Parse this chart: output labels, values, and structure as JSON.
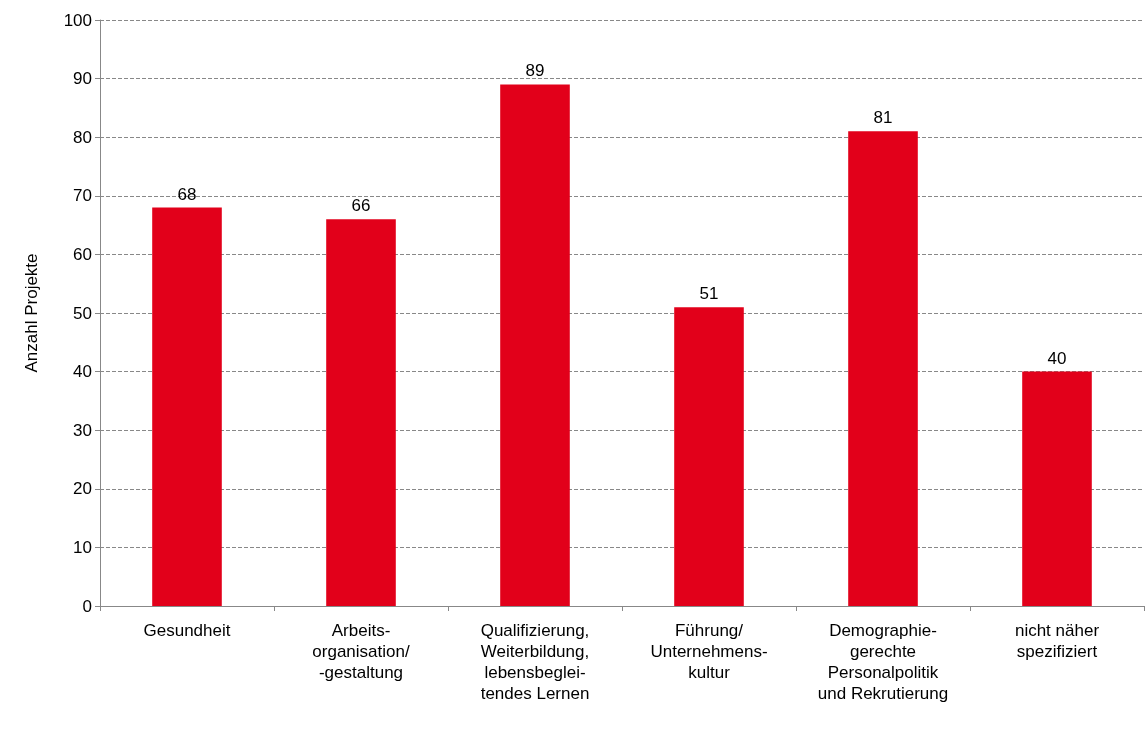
{
  "chart_data": {
    "type": "bar",
    "ylabel": "Anzahl Projekte",
    "categories": [
      "Gesundheit",
      "Arbeits-\norganisation/\n-gestaltung",
      "Qualifizierung,\nWeiterbildung,\nlebensbeglei-\ntendes Lernen",
      "Führung/\nUnternehmens-\nkultur",
      "Demographie-\ngerechte\nPersonalpolitik\nund Rekrutierung",
      "nicht näher\nspezifiziert"
    ],
    "values": [
      68,
      66,
      89,
      51,
      81,
      40
    ],
    "color": "#e2001a",
    "ylim": [
      0,
      100
    ],
    "yticks": [
      0,
      10,
      20,
      30,
      40,
      50,
      60,
      70,
      80,
      90,
      100
    ],
    "grid": "y",
    "data_labels": true
  }
}
